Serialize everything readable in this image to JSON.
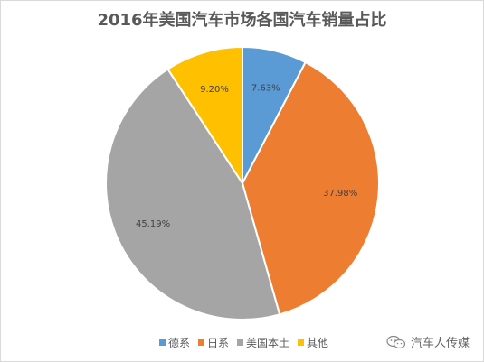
{
  "chart_data": {
    "type": "pie",
    "title": "2016年美国汽车市场各国汽车销量占比",
    "slices": [
      {
        "label": "德系",
        "value": 7.63,
        "display": "7.63%",
        "color": "#5b9bd5"
      },
      {
        "label": "日系",
        "value": 37.98,
        "display": "37.98%",
        "color": "#ed7d31"
      },
      {
        "label": "美国本土",
        "value": 45.19,
        "display": "45.19%",
        "color": "#a5a5a5"
      },
      {
        "label": "其他",
        "value": 9.2,
        "display": "9.20%",
        "color": "#ffc000"
      }
    ],
    "legend_position": "bottom"
  },
  "watermark": {
    "text": "汽车人传媒",
    "icon": "wechat-icon"
  }
}
